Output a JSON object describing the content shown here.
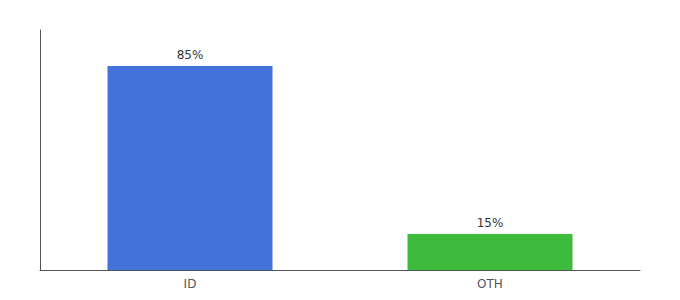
{
  "chart_data": {
    "type": "bar",
    "categories": [
      "ID",
      "OTH"
    ],
    "values": [
      85,
      15
    ],
    "value_labels": [
      "85%",
      "15%"
    ],
    "colors": [
      "#4472db",
      "#3dbb3d"
    ],
    "data_labels": true,
    "ylim": [
      0,
      100
    ],
    "yticks": [],
    "tick_labels": "x",
    "grid": false
  }
}
